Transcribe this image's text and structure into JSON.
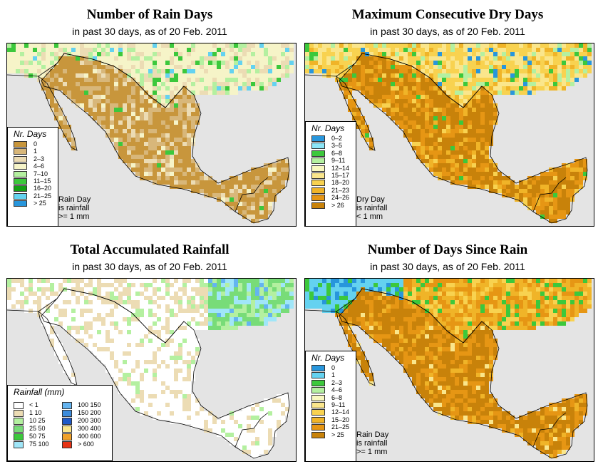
{
  "panels": [
    {
      "title": "Number of Rain Days",
      "subtitle": "in past 30 days, as of  20 Feb. 2011",
      "legend_title": "Nr. Days",
      "legend": [
        {
          "label": "0",
          "color": "#c8963c"
        },
        {
          "label": "1",
          "color": "#d8b77a"
        },
        {
          "label": "2–3",
          "color": "#ecdcb4"
        },
        {
          "label": "4–6",
          "color": "#f6f4c8"
        },
        {
          "label": "7–10",
          "color": "#b4f0a0"
        },
        {
          "label": "11–15",
          "color": "#3cc83c"
        },
        {
          "label": "16–20",
          "color": "#14a014"
        },
        {
          "label": "21–25",
          "color": "#64d2f0"
        },
        {
          "label": "> 25",
          "color": "#2896dc"
        }
      ],
      "note": [
        "Rain Day",
        "is rainfall",
        ">= 1 mm"
      ]
    },
    {
      "title": "Maximum Consecutive Dry Days",
      "subtitle": "in past 30 days, as of  20 Feb. 2011",
      "legend_title": "Nr. Days",
      "legend": [
        {
          "label": "0–2",
          "color": "#2896dc"
        },
        {
          "label": "3–5",
          "color": "#8ce6f8"
        },
        {
          "label": "6–8",
          "color": "#3cc83c"
        },
        {
          "label": "9–11",
          "color": "#b4f0a0"
        },
        {
          "label": "12–14",
          "color": "#f8f8c0"
        },
        {
          "label": "15–17",
          "color": "#fae68c"
        },
        {
          "label": "18–20",
          "color": "#f8d250"
        },
        {
          "label": "21–23",
          "color": "#f0b428"
        },
        {
          "label": "24–26",
          "color": "#e69614"
        },
        {
          "label": "> 26",
          "color": "#c8820a"
        }
      ],
      "note": [
        "Dry Day",
        "is rainfall",
        "< 1 mm"
      ]
    },
    {
      "title": "Total Accumulated Rainfall",
      "subtitle": "in past 30 days, as of  20 Feb. 2011",
      "legend_title": "Rainfall (mm)",
      "legend_left": [
        {
          "label": "< 1",
          "color": "#ffffff"
        },
        {
          "label": "1    10",
          "color": "#ecdcb4"
        },
        {
          "label": "10    25",
          "color": "#b4f0a0"
        },
        {
          "label": "25    50",
          "color": "#78dc78"
        },
        {
          "label": "50    75",
          "color": "#3cc83c"
        },
        {
          "label": "75  100",
          "color": "#a0e6f8"
        }
      ],
      "legend_right": [
        {
          "label": "100  150",
          "color": "#64b4f0"
        },
        {
          "label": "150  200",
          "color": "#3c8cdc"
        },
        {
          "label": "200  300",
          "color": "#1e5ac8"
        },
        {
          "label": "300  400",
          "color": "#fae68c"
        },
        {
          "label": "400  600",
          "color": "#f0a028"
        },
        {
          "label": "> 600",
          "color": "#e63214"
        }
      ]
    },
    {
      "title": "Number of Days Since Rain",
      "subtitle": "in past 30 days, as of  20 Feb. 2011",
      "legend_title": "Nr. Days",
      "legend": [
        {
          "label": "0",
          "color": "#2896dc"
        },
        {
          "label": "1",
          "color": "#64d2f0"
        },
        {
          "label": "2–3",
          "color": "#3cc83c"
        },
        {
          "label": "4–6",
          "color": "#b4f0a0"
        },
        {
          "label": "6–8",
          "color": "#f8f8c0"
        },
        {
          "label": "9–11",
          "color": "#fae68c"
        },
        {
          "label": "12–14",
          "color": "#f8d250"
        },
        {
          "label": "15–20",
          "color": "#f0b428"
        },
        {
          "label": "21–25",
          "color": "#e69614"
        },
        {
          "label": "> 25",
          "color": "#c8820a"
        }
      ],
      "note": [
        "Rain Day",
        "is rainfall",
        ">= 1 mm"
      ]
    }
  ],
  "map_colors": {
    "ocean": "#e4e4e4",
    "border": "#000000"
  }
}
